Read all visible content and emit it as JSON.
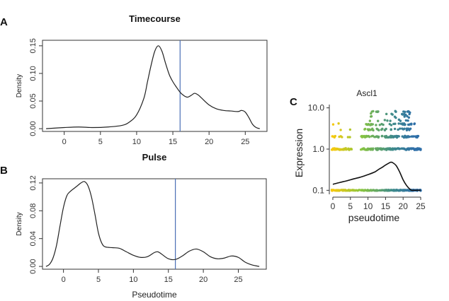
{
  "figure": {
    "panel_labels": {
      "a": "A",
      "b": "B",
      "c": "C"
    }
  },
  "chart_data": [
    {
      "type": "line",
      "panel": "A",
      "title": "Timecourse",
      "xlabel": "",
      "ylabel": "Density",
      "xlim": [
        -3,
        28
      ],
      "ylim": [
        -0.005,
        0.16
      ],
      "xticks": [
        0,
        5,
        10,
        15,
        20,
        25
      ],
      "yticks": [
        0.0,
        0.05,
        0.1,
        0.15
      ],
      "ytick_labels": [
        "0.00",
        "0.05",
        "0.10",
        "0.15"
      ],
      "vline": 16,
      "series": [
        {
          "name": "density",
          "x": [
            -2.5,
            0,
            2,
            4,
            6,
            8,
            9,
            10,
            11,
            11.5,
            12,
            12.5,
            13,
            13.5,
            14,
            14.5,
            15,
            15.5,
            16,
            16.5,
            17,
            17.5,
            18,
            18.5,
            19,
            20,
            21,
            22,
            23,
            24,
            24.5,
            25,
            25.5,
            26,
            26.5,
            27
          ],
          "y": [
            0.0,
            0.002,
            0.003,
            0.002,
            0.003,
            0.006,
            0.012,
            0.025,
            0.055,
            0.085,
            0.115,
            0.14,
            0.15,
            0.14,
            0.118,
            0.098,
            0.085,
            0.075,
            0.066,
            0.06,
            0.057,
            0.06,
            0.064,
            0.061,
            0.055,
            0.043,
            0.036,
            0.033,
            0.032,
            0.031,
            0.033,
            0.03,
            0.02,
            0.008,
            0.002,
            0.0
          ]
        }
      ]
    },
    {
      "type": "line",
      "panel": "B",
      "title": "Pulse",
      "xlabel": "Pseudotime",
      "ylabel": "Density",
      "xlim": [
        -3,
        29
      ],
      "ylim": [
        -0.004,
        0.126
      ],
      "xticks": [
        0,
        5,
        10,
        15,
        20,
        25
      ],
      "yticks": [
        0.0,
        0.04,
        0.08,
        0.12
      ],
      "ytick_labels": [
        "0.00",
        "0.04",
        "0.08",
        "0.12"
      ],
      "vline": 16,
      "series": [
        {
          "name": "density",
          "x": [
            -2.5,
            -2,
            -1.5,
            -1,
            -0.5,
            0,
            0.5,
            1,
            1.5,
            2,
            2.5,
            3,
            3.5,
            4,
            4.5,
            5,
            5.5,
            6,
            7,
            8,
            9,
            10,
            11,
            12,
            13,
            13.5,
            14,
            15,
            16,
            17,
            18,
            19,
            20,
            21,
            22,
            23,
            24,
            25,
            26,
            27,
            28
          ],
          "y": [
            0.0,
            0.003,
            0.012,
            0.03,
            0.058,
            0.085,
            0.102,
            0.108,
            0.112,
            0.116,
            0.12,
            0.122,
            0.116,
            0.1,
            0.075,
            0.048,
            0.033,
            0.028,
            0.027,
            0.026,
            0.021,
            0.016,
            0.013,
            0.014,
            0.02,
            0.021,
            0.018,
            0.011,
            0.01,
            0.015,
            0.022,
            0.025,
            0.021,
            0.014,
            0.011,
            0.012,
            0.015,
            0.013,
            0.006,
            0.002,
            0.0
          ]
        }
      ]
    },
    {
      "type": "scatter",
      "panel": "C",
      "title": "Ascl1",
      "xlabel": "pseudotime",
      "ylabel": "Expression",
      "yscale": "log",
      "xlim": [
        -1,
        26
      ],
      "ylim": [
        0.08,
        13
      ],
      "xticks": [
        0,
        5,
        10,
        15,
        20,
        25
      ],
      "yticks": [
        0.1,
        1.0,
        10.0
      ],
      "ytick_labels": [
        "0.1",
        "1.0",
        "10.0"
      ],
      "point_levels": [
        0.1,
        1,
        2,
        3,
        4,
        5,
        6,
        7,
        8
      ],
      "color_scale": [
        "#f6c90e",
        "#8ac63f",
        "#3e8a8a",
        "#2f6fa8"
      ],
      "trend_line": {
        "x": [
          0,
          2,
          4,
          6,
          8,
          10,
          12,
          13,
          14,
          15,
          16,
          16.5,
          17,
          18,
          19,
          20,
          21,
          22,
          22.5,
          23,
          25
        ],
        "y": [
          0.14,
          0.155,
          0.17,
          0.19,
          0.21,
          0.24,
          0.28,
          0.32,
          0.36,
          0.41,
          0.46,
          0.48,
          0.47,
          0.4,
          0.28,
          0.18,
          0.13,
          0.105,
          0.1,
          0.1,
          0.1
        ]
      }
    }
  ]
}
